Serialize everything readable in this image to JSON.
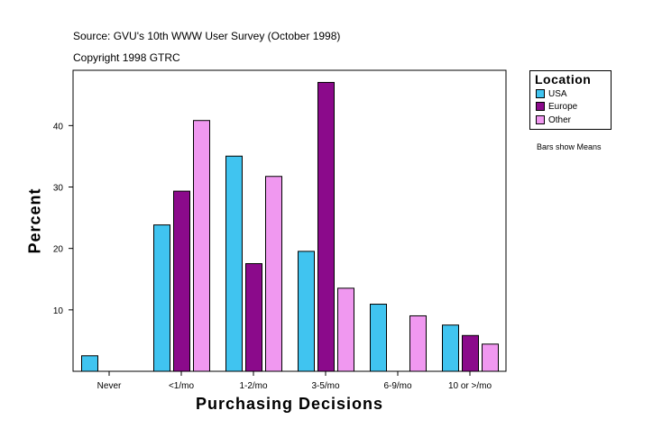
{
  "header": {
    "source": "Source: GVU's 10th WWW User Survey (October 1998)",
    "copyright": "Copyright 1998 GTRC"
  },
  "note": "Bars show Means",
  "colors": {
    "usa": "#40c4f0",
    "europe": "#8b0a8b",
    "other": "#f098f0"
  },
  "chart_data": {
    "type": "bar",
    "title": "",
    "xlabel": "Purchasing Decisions",
    "ylabel": "Percent",
    "categories": [
      "Never",
      "<1/mo",
      "1-2/mo",
      "3-5/mo",
      "6-9/mo",
      "10 or >/mo"
    ],
    "yticks": [
      10,
      20,
      30,
      40
    ],
    "ylim": [
      0,
      49
    ],
    "legend_title": "Location",
    "legend_position": "top-right outside plot",
    "series": [
      {
        "name": "USA",
        "values": [
          2.6,
          23.9,
          35.1,
          19.6,
          11.0,
          7.6
        ]
      },
      {
        "name": "Europe",
        "values": [
          0,
          29.4,
          17.6,
          47.1,
          0,
          5.9
        ]
      },
      {
        "name": "Other",
        "values": [
          0,
          40.9,
          31.8,
          13.6,
          9.1,
          4.5
        ]
      }
    ]
  }
}
